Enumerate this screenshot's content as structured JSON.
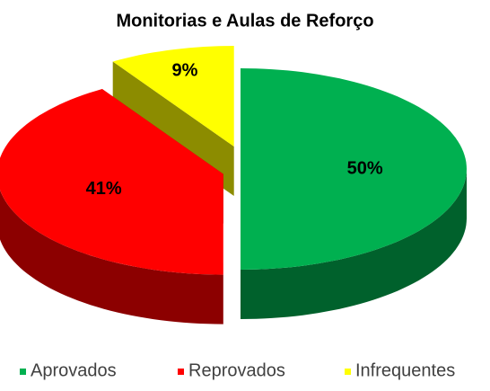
{
  "chart_data": {
    "type": "pie3d",
    "title": "Monitorias e Aulas de Reforço",
    "categories": [
      "Aprovados",
      "Reprovados",
      "Infrequentes"
    ],
    "values": [
      50,
      41,
      9
    ],
    "value_labels": [
      "50%",
      "41%",
      "9%"
    ],
    "colors": [
      "#00b050",
      "#ff0000",
      "#ffff00"
    ],
    "legend": "bottom"
  }
}
